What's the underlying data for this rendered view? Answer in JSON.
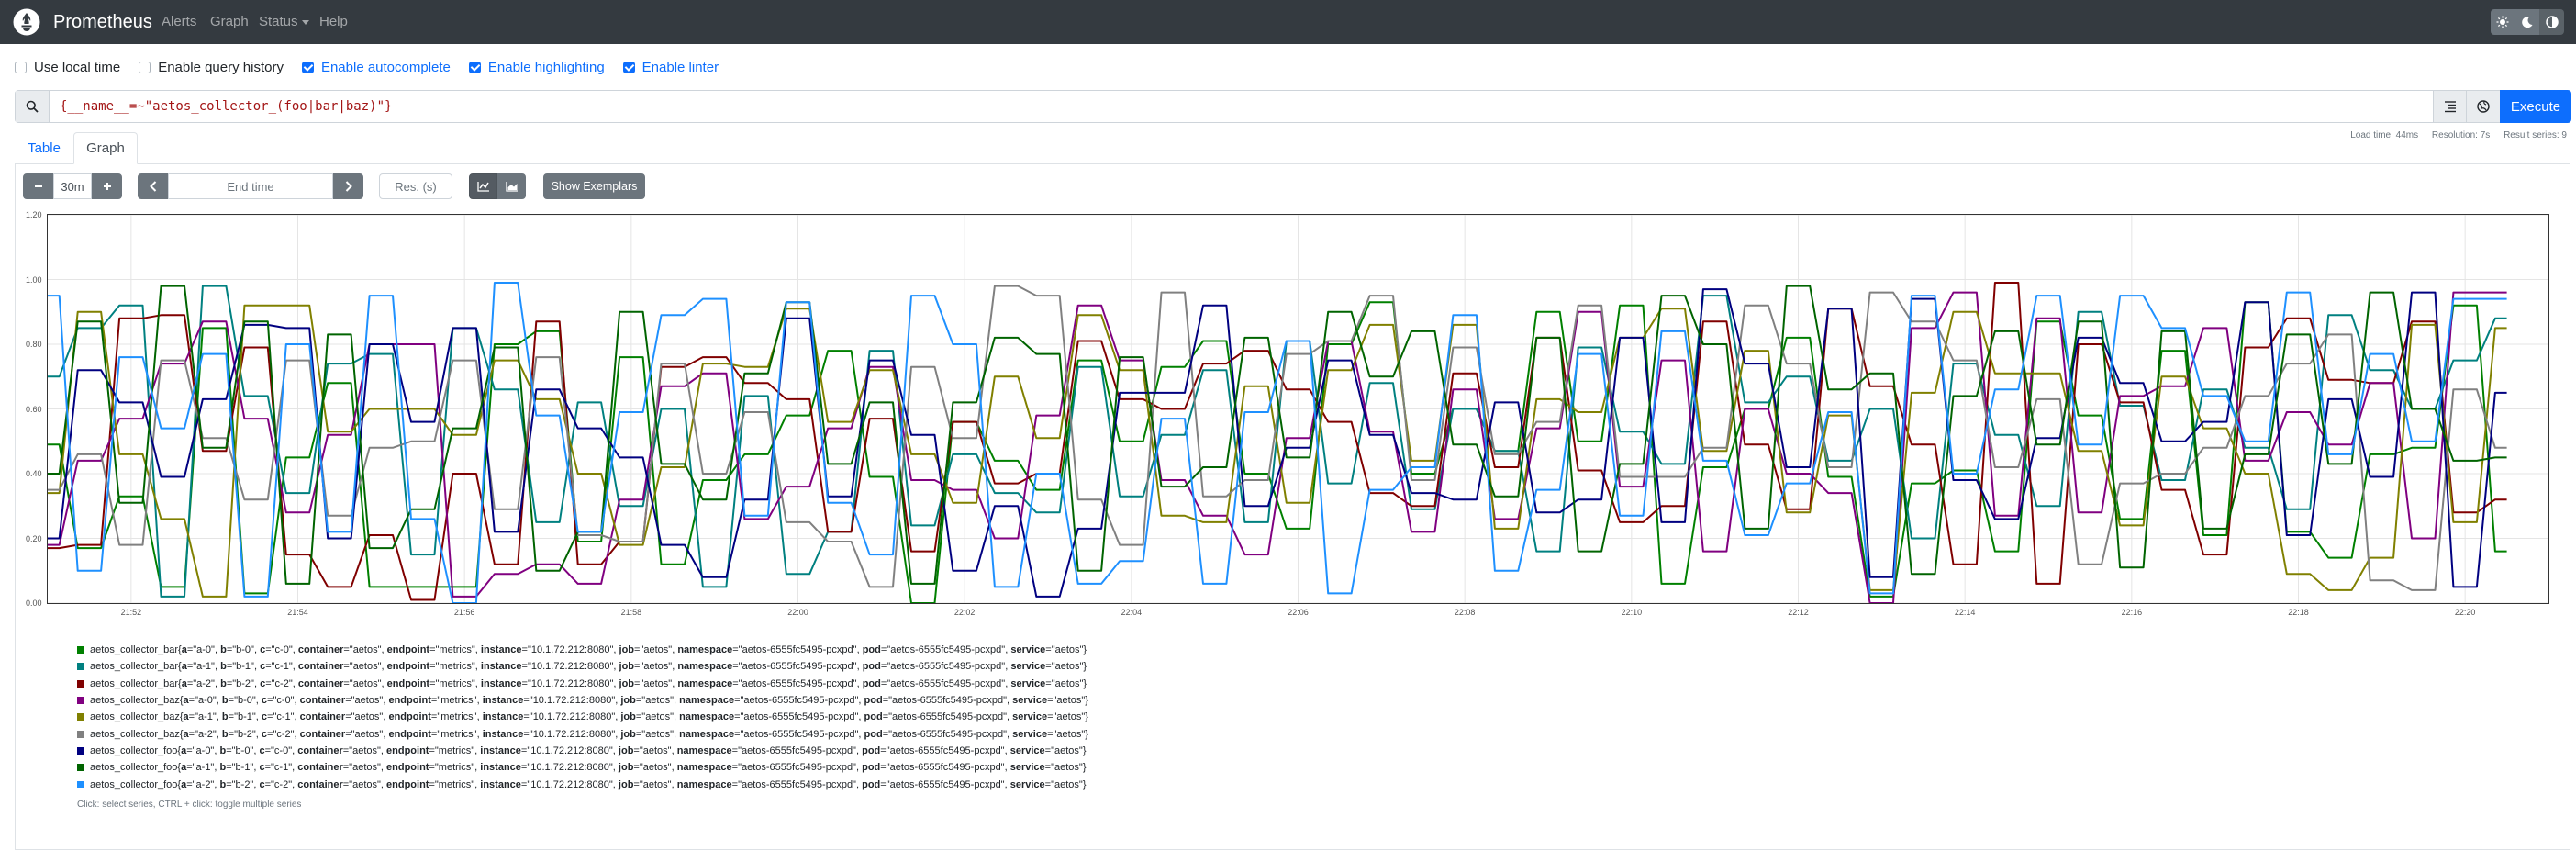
{
  "nav": {
    "brand": "Prometheus",
    "links": [
      "Alerts",
      "Graph",
      "Status",
      "Help"
    ]
  },
  "options": [
    {
      "label": "Use local time",
      "checked": false
    },
    {
      "label": "Enable query history",
      "checked": false
    },
    {
      "label": "Enable autocomplete",
      "checked": true
    },
    {
      "label": "Enable highlighting",
      "checked": true
    },
    {
      "label": "Enable linter",
      "checked": true
    }
  ],
  "query": {
    "expression": "{__name__=~\"aetos_collector_(foo|bar|baz)\"}",
    "execute_label": "Execute"
  },
  "stats": {
    "load_time": "Load time: 44ms",
    "resolution": "Resolution: 7s",
    "result_series": "Result series: 9"
  },
  "tabs": [
    "Table",
    "Graph"
  ],
  "graph_controls": {
    "range": "30m",
    "end_time_placeholder": "End time",
    "resolution_placeholder": "Res. (s)",
    "exemplars_label": "Show Exemplars"
  },
  "chart_data": {
    "type": "line",
    "title": "",
    "xlabel": "",
    "ylabel": "",
    "ylim": [
      0,
      1.2
    ],
    "y_ticks": [
      "1.20",
      "1.00",
      "0.80",
      "0.60",
      "0.40",
      "0.20",
      "0.00"
    ],
    "x_ticks": [
      "21:52",
      "21:54",
      "21:56",
      "21:58",
      "22:00",
      "22:02",
      "22:04",
      "22:06",
      "22:08",
      "22:10",
      "22:12",
      "22:14",
      "22:16",
      "22:18",
      "22:20"
    ],
    "x_range_minutes": [
      51,
      81
    ],
    "grid": true,
    "legend_placement": "bottom",
    "step_minutes": 0.5,
    "series": [
      {
        "name": "aetos_collector_bar{a=\"a-0\", b=\"b-0\", c=\"c-0\", container=\"aetos\", endpoint=\"metrics\", instance=\"10.1.72.212:8080\", job=\"aetos\", namespace=\"aetos-6555fc5495-pcxpd\", pod=\"aetos-6555fc5495-pcxpd\", service=\"aetos\"}",
        "color": "#008000",
        "values": [
          0.49,
          0.17,
          0.33,
          0.05,
          0.85,
          0.03,
          0.45,
          0.68,
          0.05,
          0.05,
          0.05,
          0.8,
          0.84,
          0.19,
          0.76,
          0.12,
          0.38,
          0.46,
          0.58,
          0.78,
          0.39,
          0.0,
          0.56,
          0.44,
          0.35,
          0.75,
          0.5,
          0.73,
          0.81,
          0.4,
          0.23,
          0.8,
          0.93,
          0.4,
          0.6,
          0.47,
          0.9,
          0.5,
          0.92,
          0.06,
          0.42,
          0.6,
          0.82,
          0.39,
          0.02,
          0.37,
          0.41,
          0.16,
          0.87,
          0.58,
          0.26,
          0.78,
          0.21,
          0.93,
          0.22,
          0.14,
          0.46,
          0.48,
          0.92,
          0.16
        ]
      },
      {
        "name": "aetos_collector_bar{a=\"a-1\", b=\"b-1\", c=\"c-1\", container=\"aetos\", endpoint=\"metrics\", instance=\"10.1.72.212:8080\", job=\"aetos\", namespace=\"aetos-6555fc5495-pcxpd\", pod=\"aetos-6555fc5495-pcxpd\", service=\"aetos\"}",
        "color": "#008080",
        "values": [
          0.7,
          0.85,
          0.92,
          0.02,
          0.98,
          0.64,
          0.34,
          0.74,
          0.77,
          0.15,
          0.85,
          0.66,
          0.25,
          0.62,
          0.3,
          0.6,
          0.05,
          0.64,
          0.09,
          0.22,
          0.78,
          0.24,
          0.46,
          0.34,
          0.28,
          0.73,
          0.33,
          0.52,
          0.72,
          0.25,
          0.81,
          0.37,
          0.68,
          0.29,
          0.6,
          0.47,
          0.16,
          0.79,
          0.53,
          0.43,
          0.95,
          0.62,
          0.7,
          0.44,
          0.6,
          0.2,
          0.74,
          0.52,
          0.3,
          0.9,
          0.61,
          0.38,
          0.66,
          0.48,
          0.29,
          0.89,
          0.72,
          0.6,
          0.75,
          0.88
        ]
      },
      {
        "name": "aetos_collector_bar{a=\"a-2\", b=\"b-2\", c=\"c-2\", container=\"aetos\", endpoint=\"metrics\", instance=\"10.1.72.212:8080\", job=\"aetos\", namespace=\"aetos-6555fc5495-pcxpd\", pod=\"aetos-6555fc5495-pcxpd\", service=\"aetos\"}",
        "color": "#800000",
        "values": [
          0.17,
          0.18,
          0.88,
          0.89,
          0.47,
          0.79,
          0.15,
          0.05,
          0.21,
          0.01,
          0.4,
          0.12,
          0.87,
          0.12,
          0.19,
          0.73,
          0.76,
          0.68,
          0.63,
          0.22,
          0.57,
          0.16,
          0.56,
          0.37,
          0.4,
          0.81,
          0.63,
          0.6,
          0.74,
          0.78,
          0.66,
          0.56,
          0.34,
          0.3,
          0.71,
          0.42,
          0.82,
          0.41,
          0.25,
          0.3,
          0.87,
          0.49,
          0.29,
          0.91,
          0.67,
          0.49,
          0.12,
          0.99,
          0.06,
          0.8,
          0.62,
          0.35,
          0.15,
          0.79,
          0.88,
          0.69,
          0.68,
          0.87,
          0.28,
          0.32
        ]
      },
      {
        "name": "aetos_collector_baz{a=\"a-0\", b=\"b-0\", c=\"c-0\", container=\"aetos\", endpoint=\"metrics\", instance=\"10.1.72.212:8080\", job=\"aetos\", namespace=\"aetos-6555fc5495-pcxpd\", pod=\"aetos-6555fc5495-pcxpd\", service=\"aetos\"}",
        "color": "#800080",
        "values": [
          0.18,
          0.44,
          0.57,
          0.74,
          0.87,
          0.57,
          0.28,
          0.52,
          0.8,
          0.8,
          0.02,
          0.09,
          0.12,
          0.06,
          0.32,
          0.67,
          0.71,
          0.26,
          0.36,
          0.54,
          0.73,
          0.38,
          0.35,
          0.2,
          0.58,
          0.92,
          0.75,
          0.38,
          0.27,
          0.15,
          0.51,
          0.81,
          0.53,
          0.22,
          0.66,
          0.26,
          0.54,
          0.9,
          0.36,
          0.75,
          0.16,
          0.6,
          0.4,
          0.34,
          0.0,
          0.85,
          0.96,
          0.27,
          0.88,
          0.28,
          0.64,
          0.67,
          0.85,
          0.44,
          0.59,
          0.49,
          0.68,
          0.2,
          0.96,
          0.96
        ]
      },
      {
        "name": "aetos_collector_baz{a=\"a-1\", b=\"b-1\", c=\"c-1\", container=\"aetos\", endpoint=\"metrics\", instance=\"10.1.72.212:8080\", job=\"aetos\", namespace=\"aetos-6555fc5495-pcxpd\", pod=\"aetos-6555fc5495-pcxpd\", service=\"aetos\"}",
        "color": "#808000",
        "values": [
          0.34,
          0.9,
          0.46,
          0.26,
          0.02,
          0.92,
          0.92,
          0.53,
          0.6,
          0.6,
          0.52,
          0.75,
          0.63,
          0.4,
          0.18,
          0.42,
          0.74,
          0.73,
          0.91,
          0.56,
          0.72,
          0.46,
          0.31,
          0.7,
          0.51,
          0.89,
          0.72,
          0.27,
          0.25,
          0.67,
          0.31,
          0.72,
          0.86,
          0.44,
          0.86,
          0.23,
          0.63,
          0.59,
          0.82,
          0.91,
          0.47,
          0.78,
          0.28,
          0.58,
          0.04,
          0.65,
          0.9,
          0.71,
          0.71,
          0.47,
          0.24,
          0.7,
          0.54,
          0.4,
          0.09,
          0.04,
          0.14,
          0.86,
          0.25,
          0.85
        ]
      },
      {
        "name": "aetos_collector_baz{a=\"a-2\", b=\"b-2\", c=\"c-2\", container=\"aetos\", endpoint=\"metrics\", instance=\"10.1.72.212:8080\", job=\"aetos\", namespace=\"aetos-6555fc5495-pcxpd\", pod=\"aetos-6555fc5495-pcxpd\", service=\"aetos\"}",
        "color": "#808080",
        "values": [
          0.35,
          0.46,
          0.18,
          0.75,
          0.51,
          0.32,
          0.75,
          0.27,
          0.48,
          0.5,
          0.75,
          0.29,
          0.76,
          0.21,
          0.19,
          0.74,
          0.4,
          0.59,
          0.25,
          0.19,
          0.05,
          0.73,
          0.51,
          0.98,
          0.95,
          0.32,
          0.18,
          0.96,
          0.33,
          0.38,
          0.77,
          0.81,
          0.95,
          0.38,
          0.79,
          0.46,
          0.56,
          0.92,
          0.39,
          0.39,
          0.48,
          0.92,
          0.74,
          0.42,
          0.96,
          0.87,
          0.75,
          0.42,
          0.63,
          0.12,
          0.37,
          0.4,
          0.48,
          0.64,
          0.74,
          0.83,
          0.07,
          0.04,
          0.66,
          0.48
        ]
      },
      {
        "name": "aetos_collector_foo{a=\"a-0\", b=\"b-0\", c=\"c-0\", container=\"aetos\", endpoint=\"metrics\", instance=\"10.1.72.212:8080\", job=\"aetos\", namespace=\"aetos-6555fc5495-pcxpd\", pod=\"aetos-6555fc5495-pcxpd\", service=\"aetos\"}",
        "color": "#000080",
        "values": [
          0.2,
          0.72,
          0.62,
          0.39,
          0.63,
          0.86,
          0.85,
          0.2,
          0.8,
          0.56,
          0.85,
          0.22,
          0.66,
          0.54,
          0.45,
          0.18,
          0.08,
          0.32,
          0.88,
          0.33,
          0.75,
          0.52,
          0.1,
          0.3,
          0.02,
          0.23,
          0.65,
          0.65,
          0.92,
          0.3,
          0.48,
          0.75,
          0.52,
          0.34,
          0.32,
          0.62,
          0.28,
          0.32,
          0.82,
          0.25,
          0.97,
          0.74,
          0.42,
          0.91,
          0.08,
          0.94,
          0.38,
          0.26,
          0.51,
          0.82,
          0.68,
          0.5,
          0.56,
          0.93,
          0.21,
          0.63,
          0.39,
          0.96,
          0.05,
          0.65
        ]
      },
      {
        "name": "aetos_collector_foo{a=\"a-1\", b=\"b-1\", c=\"c-1\", container=\"aetos\", endpoint=\"metrics\", instance=\"10.1.72.212:8080\", job=\"aetos\", namespace=\"aetos-6555fc5495-pcxpd\", pod=\"aetos-6555fc5495-pcxpd\", service=\"aetos\"}",
        "color": "#006400",
        "values": [
          0.4,
          0.87,
          0.31,
          0.98,
          0.48,
          0.87,
          0.06,
          0.83,
          0.17,
          0.29,
          0.54,
          0.79,
          0.1,
          0.22,
          0.9,
          0.43,
          0.32,
          0.71,
          0.93,
          0.43,
          0.62,
          0.06,
          0.62,
          0.82,
          0.77,
          0.1,
          0.76,
          0.36,
          0.42,
          0.82,
          0.45,
          0.9,
          0.7,
          0.84,
          0.49,
          0.33,
          0.82,
          0.16,
          0.43,
          0.95,
          0.8,
          0.23,
          0.98,
          0.66,
          0.71,
          0.09,
          0.64,
          0.84,
          0.49,
          0.87,
          0.11,
          0.84,
          0.23,
          0.46,
          0.83,
          0.43,
          0.96,
          0.6,
          0.44,
          0.45
        ]
      },
      {
        "name": "aetos_collector_foo{a=\"a-2\", b=\"b-2\", c=\"c-2\", container=\"aetos\", endpoint=\"metrics\", instance=\"10.1.72.212:8080\", job=\"aetos\", namespace=\"aetos-6555fc5495-pcxpd\", pod=\"aetos-6555fc5495-pcxpd\", service=\"aetos\"}",
        "color": "#1e90ff",
        "values": [
          0.95,
          0.1,
          0.76,
          0.54,
          0.77,
          0.02,
          0.8,
          0.22,
          0.95,
          0.26,
          0.0,
          0.99,
          0.58,
          0.22,
          0.59,
          0.89,
          0.94,
          0.27,
          0.93,
          0.31,
          0.15,
          0.95,
          0.8,
          0.05,
          0.4,
          0.06,
          0.13,
          0.57,
          0.06,
          0.59,
          0.81,
          0.03,
          0.35,
          0.42,
          0.89,
          0.1,
          0.35,
          0.77,
          0.27,
          0.84,
          0.44,
          0.21,
          0.37,
          0.59,
          0.03,
          0.95,
          0.4,
          0.66,
          0.95,
          0.49,
          0.95,
          0.85,
          0.64,
          0.5,
          0.96,
          0.46,
          0.77,
          0.5,
          0.94,
          0.94
        ]
      }
    ]
  },
  "legend_help": "Click: select series, CTRL + click: toggle multiple series"
}
